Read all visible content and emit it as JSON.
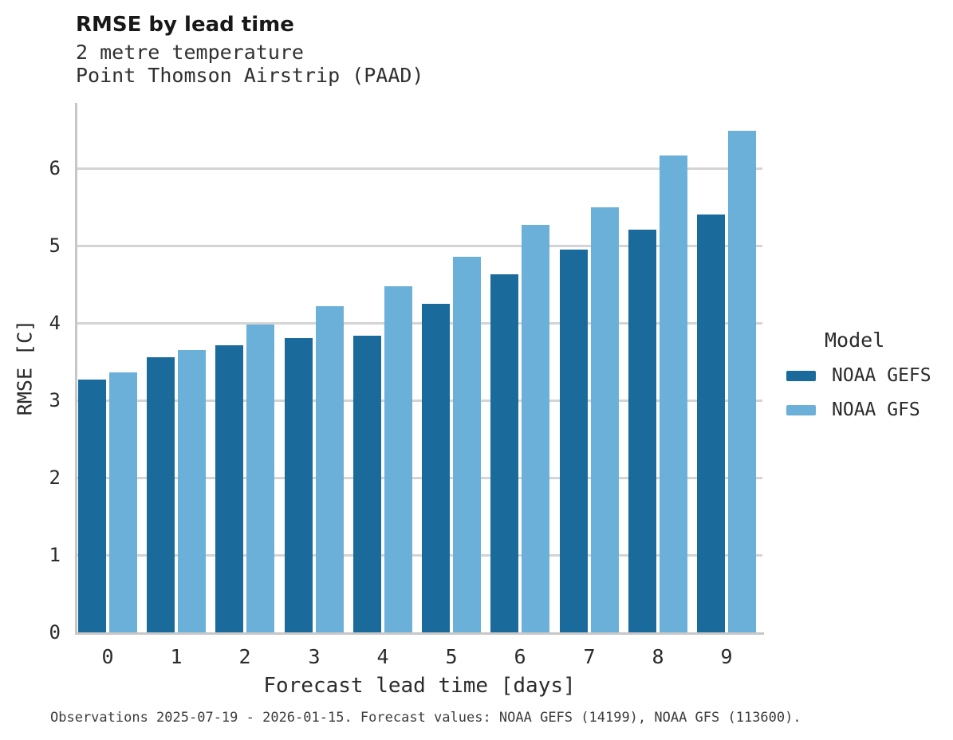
{
  "header": {
    "title": "RMSE by lead time",
    "subtitle1": "2 metre temperature",
    "subtitle2": "Point Thomson Airstrip (PAAD)"
  },
  "chart_data": {
    "type": "bar",
    "title": "RMSE by lead time",
    "subtitle": [
      "2 metre temperature",
      "Point Thomson Airstrip (PAAD)"
    ],
    "categories": [
      "0",
      "1",
      "2",
      "3",
      "4",
      "5",
      "6",
      "7",
      "8",
      "9"
    ],
    "series": [
      {
        "name": "NOAA GEFS",
        "color": "#1a6b9c",
        "values": [
          3.27,
          3.56,
          3.71,
          3.8,
          3.84,
          4.25,
          4.63,
          4.95,
          5.21,
          5.4
        ]
      },
      {
        "name": "NOAA GFS",
        "color": "#6bb0d8",
        "values": [
          3.36,
          3.65,
          3.98,
          4.22,
          4.47,
          4.86,
          5.27,
          5.5,
          6.17,
          6.48
        ]
      }
    ],
    "xlabel": "Forecast lead time [days]",
    "ylabel": "RMSE [C]",
    "yticks": [
      0,
      1,
      2,
      3,
      4,
      5,
      6
    ],
    "ylim": [
      0,
      6.85
    ],
    "grid": true,
    "grid_color": "#d4d4d4",
    "axis_color": "#c7c7c7",
    "legend_position": "right"
  },
  "legend": {
    "title": "Model",
    "items": [
      {
        "label": "NOAA GEFS",
        "color": "#1a6b9c"
      },
      {
        "label": "NOAA GFS",
        "color": "#6bb0d8"
      }
    ]
  },
  "footer": {
    "caption": "Observations 2025-07-19 - 2026-01-15. Forecast values: NOAA GEFS (14199), NOAA GFS (113600)."
  }
}
